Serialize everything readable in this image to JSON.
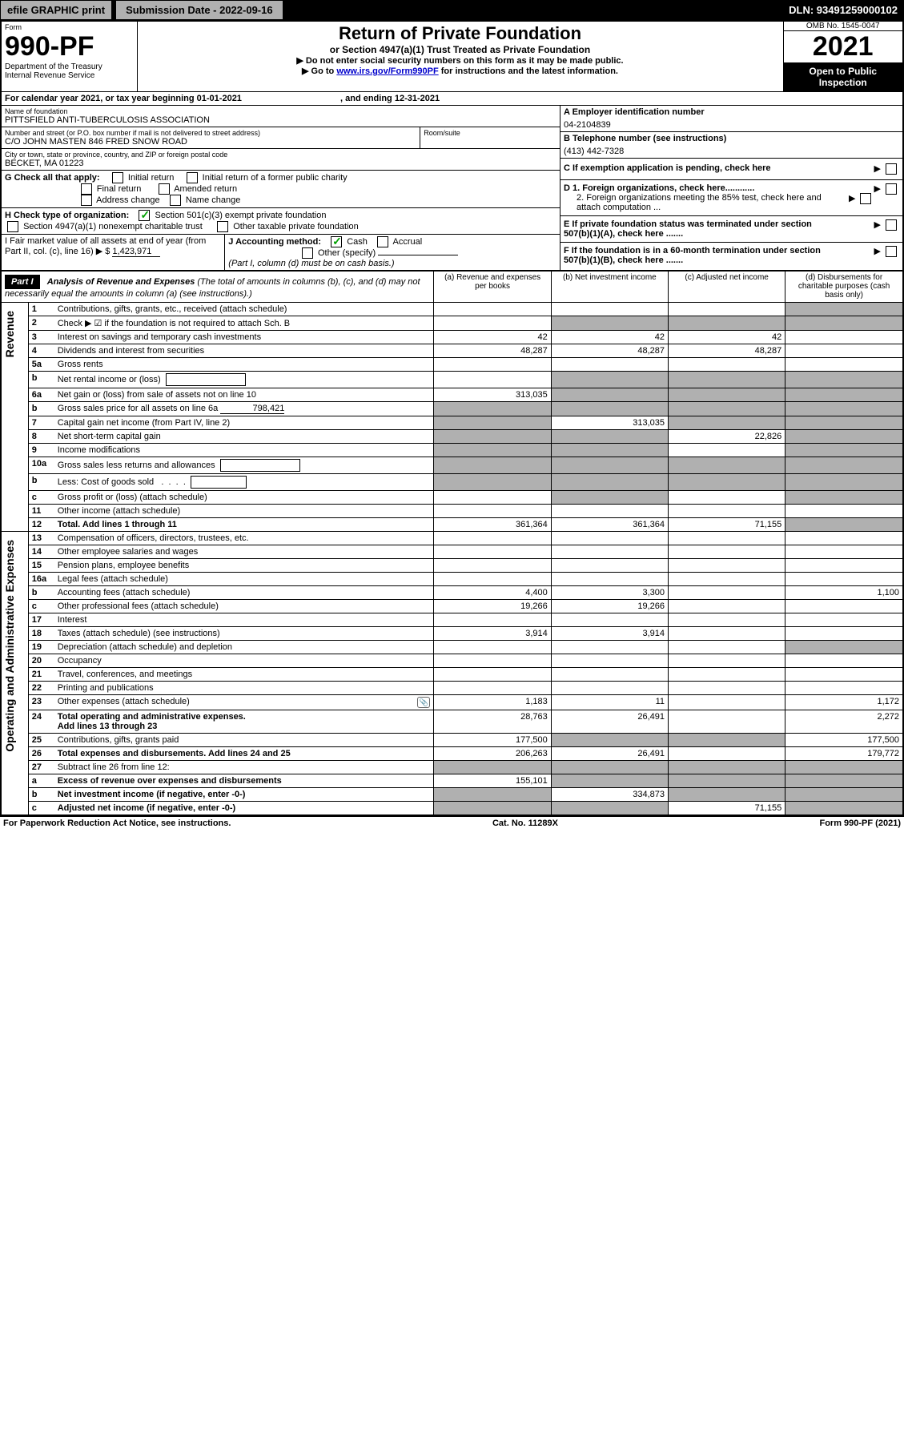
{
  "topbar": {
    "efile_label": "efile GRAPHIC print",
    "submission_label": "Submission Date - 2022-09-16",
    "dln": "DLN: 93491259000102"
  },
  "header": {
    "form_word": "Form",
    "form_number": "990-PF",
    "dept1": "Department of the Treasury",
    "dept2": "Internal Revenue Service",
    "title": "Return of Private Foundation",
    "subtitle": "or Section 4947(a)(1) Trust Treated as Private Foundation",
    "note1": "▶ Do not enter social security numbers on this form as it may be made public.",
    "note2_pre": "▶ Go to ",
    "note2_link": "www.irs.gov/Form990PF",
    "note2_post": " for instructions and the latest information.",
    "omb": "OMB No. 1545-0047",
    "year": "2021",
    "open_pub": "Open to Public Inspection"
  },
  "cal_year": {
    "text_pre": "For calendar year 2021, or tax year beginning ",
    "begin": "01-01-2021",
    "text_mid": ", and ending ",
    "end": "12-31-2021"
  },
  "name": {
    "label": "Name of foundation",
    "value": "PITTSFIELD ANTI-TUBERCULOSIS ASSOCIATION"
  },
  "address": {
    "street_label": "Number and street (or P.O. box number if mail is not delivered to street address)",
    "street_value": "C/O JOHN MASTEN 846 FRED SNOW ROAD",
    "room_label": "Room/suite",
    "city_label": "City or town, state or province, country, and ZIP or foreign postal code",
    "city_value": "BECKET, MA  01223"
  },
  "right_box": {
    "a_label": "A Employer identification number",
    "a_value": "04-2104839",
    "b_label": "B Telephone number (see instructions)",
    "b_value": "(413) 442-7328",
    "c_label": "C If exemption application is pending, check here",
    "d1_label": "D 1. Foreign organizations, check here............",
    "d2_label": "2. Foreign organizations meeting the 85% test, check here and attach computation ...",
    "e_label": "E  If private foundation status was terminated under section 507(b)(1)(A), check here .......",
    "f_label": "F  If the foundation is in a 60-month termination under section 507(b)(1)(B), check here .......",
    "arrow": "▶"
  },
  "g": {
    "label": "G Check all that apply:",
    "initial": "Initial return",
    "initial_former": "Initial return of a former public charity",
    "final": "Final return",
    "amended": "Amended return",
    "addr": "Address change",
    "name_chg": "Name change"
  },
  "h": {
    "label": "H Check type of organization:",
    "c3": "Section 501(c)(3) exempt private foundation",
    "4947": "Section 4947(a)(1) nonexempt charitable trust",
    "other_tax": "Other taxable private foundation"
  },
  "i": {
    "label": "I Fair market value of all assets at end of year (from Part II, col. (c), line 16) ▶ $",
    "value": "1,423,971"
  },
  "j": {
    "label": "J Accounting method:",
    "cash": "Cash",
    "accrual": "Accrual",
    "other": "Other (specify)",
    "note": "(Part I, column (d) must be on cash basis.)"
  },
  "part1": {
    "hdr": "Part I",
    "title": "Analysis of Revenue and Expenses",
    "title_note": " (The total of amounts in columns (b), (c), and (d) may not necessarily equal the amounts in column (a) (see instructions).)",
    "col_a": "(a)   Revenue and expenses per books",
    "col_b": "(b)   Net investment income",
    "col_c": "(c)   Adjusted net income",
    "col_d": "(d)   Disbursements for charitable purposes (cash basis only)"
  },
  "sidebar": {
    "revenue": "Revenue",
    "expenses": "Operating and Administrative Expenses"
  },
  "rows": [
    {
      "n": "1",
      "desc": "Contributions, gifts, grants, etc., received (attach schedule)",
      "a": "",
      "b": "",
      "c": "",
      "d": "",
      "d_grey": true
    },
    {
      "n": "2",
      "desc": "Check ▶ ☑ if the foundation is not required to attach Sch. B",
      "dash": true,
      "a": "",
      "b": "",
      "c": "",
      "d": "",
      "b_grey": true,
      "c_grey": true,
      "d_grey": true
    },
    {
      "n": "3",
      "desc": "Interest on savings and temporary cash investments",
      "a": "42",
      "b": "42",
      "c": "42",
      "d": ""
    },
    {
      "n": "4",
      "desc": "Dividends and interest from securities",
      "a": "48,287",
      "b": "48,287",
      "c": "48,287",
      "d": ""
    },
    {
      "n": "5a",
      "desc": "Gross rents",
      "a": "",
      "b": "",
      "c": "",
      "d": ""
    },
    {
      "n": "b",
      "desc": "Net rental income or (loss)",
      "has_box": true,
      "a": "",
      "b": "",
      "c": "",
      "d": "",
      "b_grey": true,
      "c_grey": true,
      "d_grey": true
    },
    {
      "n": "6a",
      "desc": "Net gain or (loss) from sale of assets not on line 10",
      "a": "313,035",
      "b": "",
      "c": "",
      "d": "",
      "b_grey": true,
      "c_grey": true,
      "d_grey": true
    },
    {
      "n": "b",
      "desc": "Gross sales price for all assets on line 6a",
      "inline_val": "798,421",
      "a": "",
      "b": "",
      "c": "",
      "d": "",
      "a_grey": true,
      "b_grey": true,
      "c_grey": true,
      "d_grey": true
    },
    {
      "n": "7",
      "desc": "Capital gain net income (from Part IV, line 2)",
      "a": "",
      "b": "313,035",
      "c": "",
      "d": "",
      "a_grey": true,
      "c_grey": true,
      "d_grey": true
    },
    {
      "n": "8",
      "desc": "Net short-term capital gain",
      "a": "",
      "b": "",
      "c": "22,826",
      "d": "",
      "a_grey": true,
      "b_grey": true,
      "d_grey": true
    },
    {
      "n": "9",
      "desc": "Income modifications",
      "a": "",
      "b": "",
      "c": "",
      "d": "",
      "a_grey": true,
      "b_grey": true,
      "d_grey": true
    },
    {
      "n": "10a",
      "desc": "Gross sales less returns and allowances",
      "has_box": true,
      "a": "",
      "b": "",
      "c": "",
      "d": "",
      "a_grey": true,
      "b_grey": true,
      "c_grey": true,
      "d_grey": true
    },
    {
      "n": "b",
      "desc": "Less: Cost of goods sold",
      "has_box_sm": true,
      "a": "",
      "b": "",
      "c": "",
      "d": "",
      "a_grey": true,
      "b_grey": true,
      "c_grey": true,
      "d_grey": true
    },
    {
      "n": "c",
      "desc": "Gross profit or (loss) (attach schedule)",
      "a": "",
      "b": "",
      "c": "",
      "d": "",
      "b_grey": true,
      "d_grey": true
    },
    {
      "n": "11",
      "desc": "Other income (attach schedule)",
      "a": "",
      "b": "",
      "c": "",
      "d": ""
    },
    {
      "n": "12",
      "desc": "Total. Add lines 1 through 11",
      "bold": true,
      "a": "361,364",
      "b": "361,364",
      "c": "71,155",
      "d": "",
      "d_grey": true
    }
  ],
  "exp_rows": [
    {
      "n": "13",
      "desc": "Compensation of officers, directors, trustees, etc.",
      "a": "",
      "b": "",
      "c": "",
      "d": ""
    },
    {
      "n": "14",
      "desc": "Other employee salaries and wages",
      "a": "",
      "b": "",
      "c": "",
      "d": ""
    },
    {
      "n": "15",
      "desc": "Pension plans, employee benefits",
      "a": "",
      "b": "",
      "c": "",
      "d": ""
    },
    {
      "n": "16a",
      "desc": "Legal fees (attach schedule)",
      "a": "",
      "b": "",
      "c": "",
      "d": ""
    },
    {
      "n": "b",
      "desc": "Accounting fees (attach schedule)",
      "a": "4,400",
      "b": "3,300",
      "c": "",
      "d": "1,100"
    },
    {
      "n": "c",
      "desc": "Other professional fees (attach schedule)",
      "a": "19,266",
      "b": "19,266",
      "c": "",
      "d": ""
    },
    {
      "n": "17",
      "desc": "Interest",
      "a": "",
      "b": "",
      "c": "",
      "d": ""
    },
    {
      "n": "18",
      "desc": "Taxes (attach schedule) (see instructions)",
      "a": "3,914",
      "b": "3,914",
      "c": "",
      "d": ""
    },
    {
      "n": "19",
      "desc": "Depreciation (attach schedule) and depletion",
      "a": "",
      "b": "",
      "c": "",
      "d": "",
      "d_grey": true
    },
    {
      "n": "20",
      "desc": "Occupancy",
      "a": "",
      "b": "",
      "c": "",
      "d": ""
    },
    {
      "n": "21",
      "desc": "Travel, conferences, and meetings",
      "a": "",
      "b": "",
      "c": "",
      "d": ""
    },
    {
      "n": "22",
      "desc": "Printing and publications",
      "a": "",
      "b": "",
      "c": "",
      "d": ""
    },
    {
      "n": "23",
      "desc": "Other expenses (attach schedule)",
      "has_icon": true,
      "a": "1,183",
      "b": "11",
      "c": "",
      "d": "1,172"
    },
    {
      "n": "24",
      "desc": "Total operating and administrative expenses.",
      "desc2": "Add lines 13 through 23",
      "bold": true,
      "a": "28,763",
      "b": "26,491",
      "c": "",
      "d": "2,272"
    },
    {
      "n": "25",
      "desc": "Contributions, gifts, grants paid",
      "a": "177,500",
      "b": "",
      "c": "",
      "d": "177,500",
      "b_grey": true,
      "c_grey": true
    },
    {
      "n": "26",
      "desc": "Total expenses and disbursements. Add lines 24 and 25",
      "bold": true,
      "a": "206,263",
      "b": "26,491",
      "c": "",
      "d": "179,772"
    },
    {
      "n": "27",
      "desc": "Subtract line 26 from line 12:",
      "a": "",
      "b": "",
      "c": "",
      "d": "",
      "a_grey": true,
      "b_grey": true,
      "c_grey": true,
      "d_grey": true
    },
    {
      "n": "a",
      "desc": "Excess of revenue over expenses and disbursements",
      "bold": true,
      "a": "155,101",
      "b": "",
      "c": "",
      "d": "",
      "b_grey": true,
      "c_grey": true,
      "d_grey": true
    },
    {
      "n": "b",
      "desc": "Net investment income (if negative, enter -0-)",
      "bold": true,
      "a": "",
      "b": "334,873",
      "c": "",
      "d": "",
      "a_grey": true,
      "c_grey": true,
      "d_grey": true
    },
    {
      "n": "c",
      "desc": "Adjusted net income (if negative, enter -0-)",
      "bold": true,
      "a": "",
      "b": "",
      "c": "71,155",
      "d": "",
      "a_grey": true,
      "b_grey": true,
      "d_grey": true
    }
  ],
  "footer": {
    "left": "For Paperwork Reduction Act Notice, see instructions.",
    "mid": "Cat. No. 11289X",
    "right": "Form 990-PF (2021)"
  },
  "colors": {
    "grey": "#b0b0b0",
    "black": "#000000",
    "link": "#0000cc",
    "check": "#00a000"
  }
}
